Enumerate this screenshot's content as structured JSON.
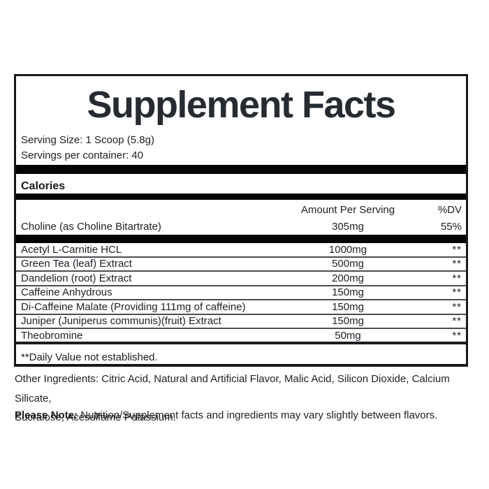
{
  "label": {
    "title": "Supplement Facts",
    "serving_size": "Serving Size: 1 Scoop (5.8g)",
    "servings_per_container": "Servings per container: 40",
    "calories_label": "Calories",
    "header": {
      "amount": "Amount Per Serving",
      "dv": "%DV"
    },
    "choline": {
      "name": "Choline (as Choline Bitartrate)",
      "amount": "305mg",
      "dv": "55%"
    },
    "rows": [
      {
        "name": "Acetyl L-Carnitie HCL",
        "amount": "1000mg",
        "dv": "**"
      },
      {
        "name": "Green Tea (leaf) Extract",
        "amount": "500mg",
        "dv": "**"
      },
      {
        "name": "Dandelion (root) Extract",
        "amount": "200mg",
        "dv": "**"
      },
      {
        "name": "Caffeine Anhydrous",
        "amount": "150mg",
        "dv": "**"
      },
      {
        "name": "Di-Caffeine Malate (Providing 111mg of caffeine)",
        "amount": "150mg",
        "dv": "**"
      },
      {
        "name": "Juniper (Juniperus communis)(fruit) Extract",
        "amount": "150mg",
        "dv": "**"
      },
      {
        "name": "Theobromine",
        "amount": "50mg",
        "dv": "**"
      }
    ],
    "footnote": "**Daily Value not established.",
    "other_ingredients_lines": [
      "Other Ingredients: Citric Acid, Natural and Artificial Flavor, Malic Acid, Silicon Dioxide, Calcium Silicate,",
      "Sucralose, Acesulfame Potassium."
    ],
    "note_label": "Please Note:",
    "note_text": " Nutrition/Supplement facts and ingredients may vary slightly between flavors."
  },
  "colors": {
    "text": "#1c1f24",
    "title": "#262a31",
    "bar": "#040404",
    "box_border": "#17191d",
    "row_separator": "#4a4d52",
    "background": "#ffffff"
  }
}
